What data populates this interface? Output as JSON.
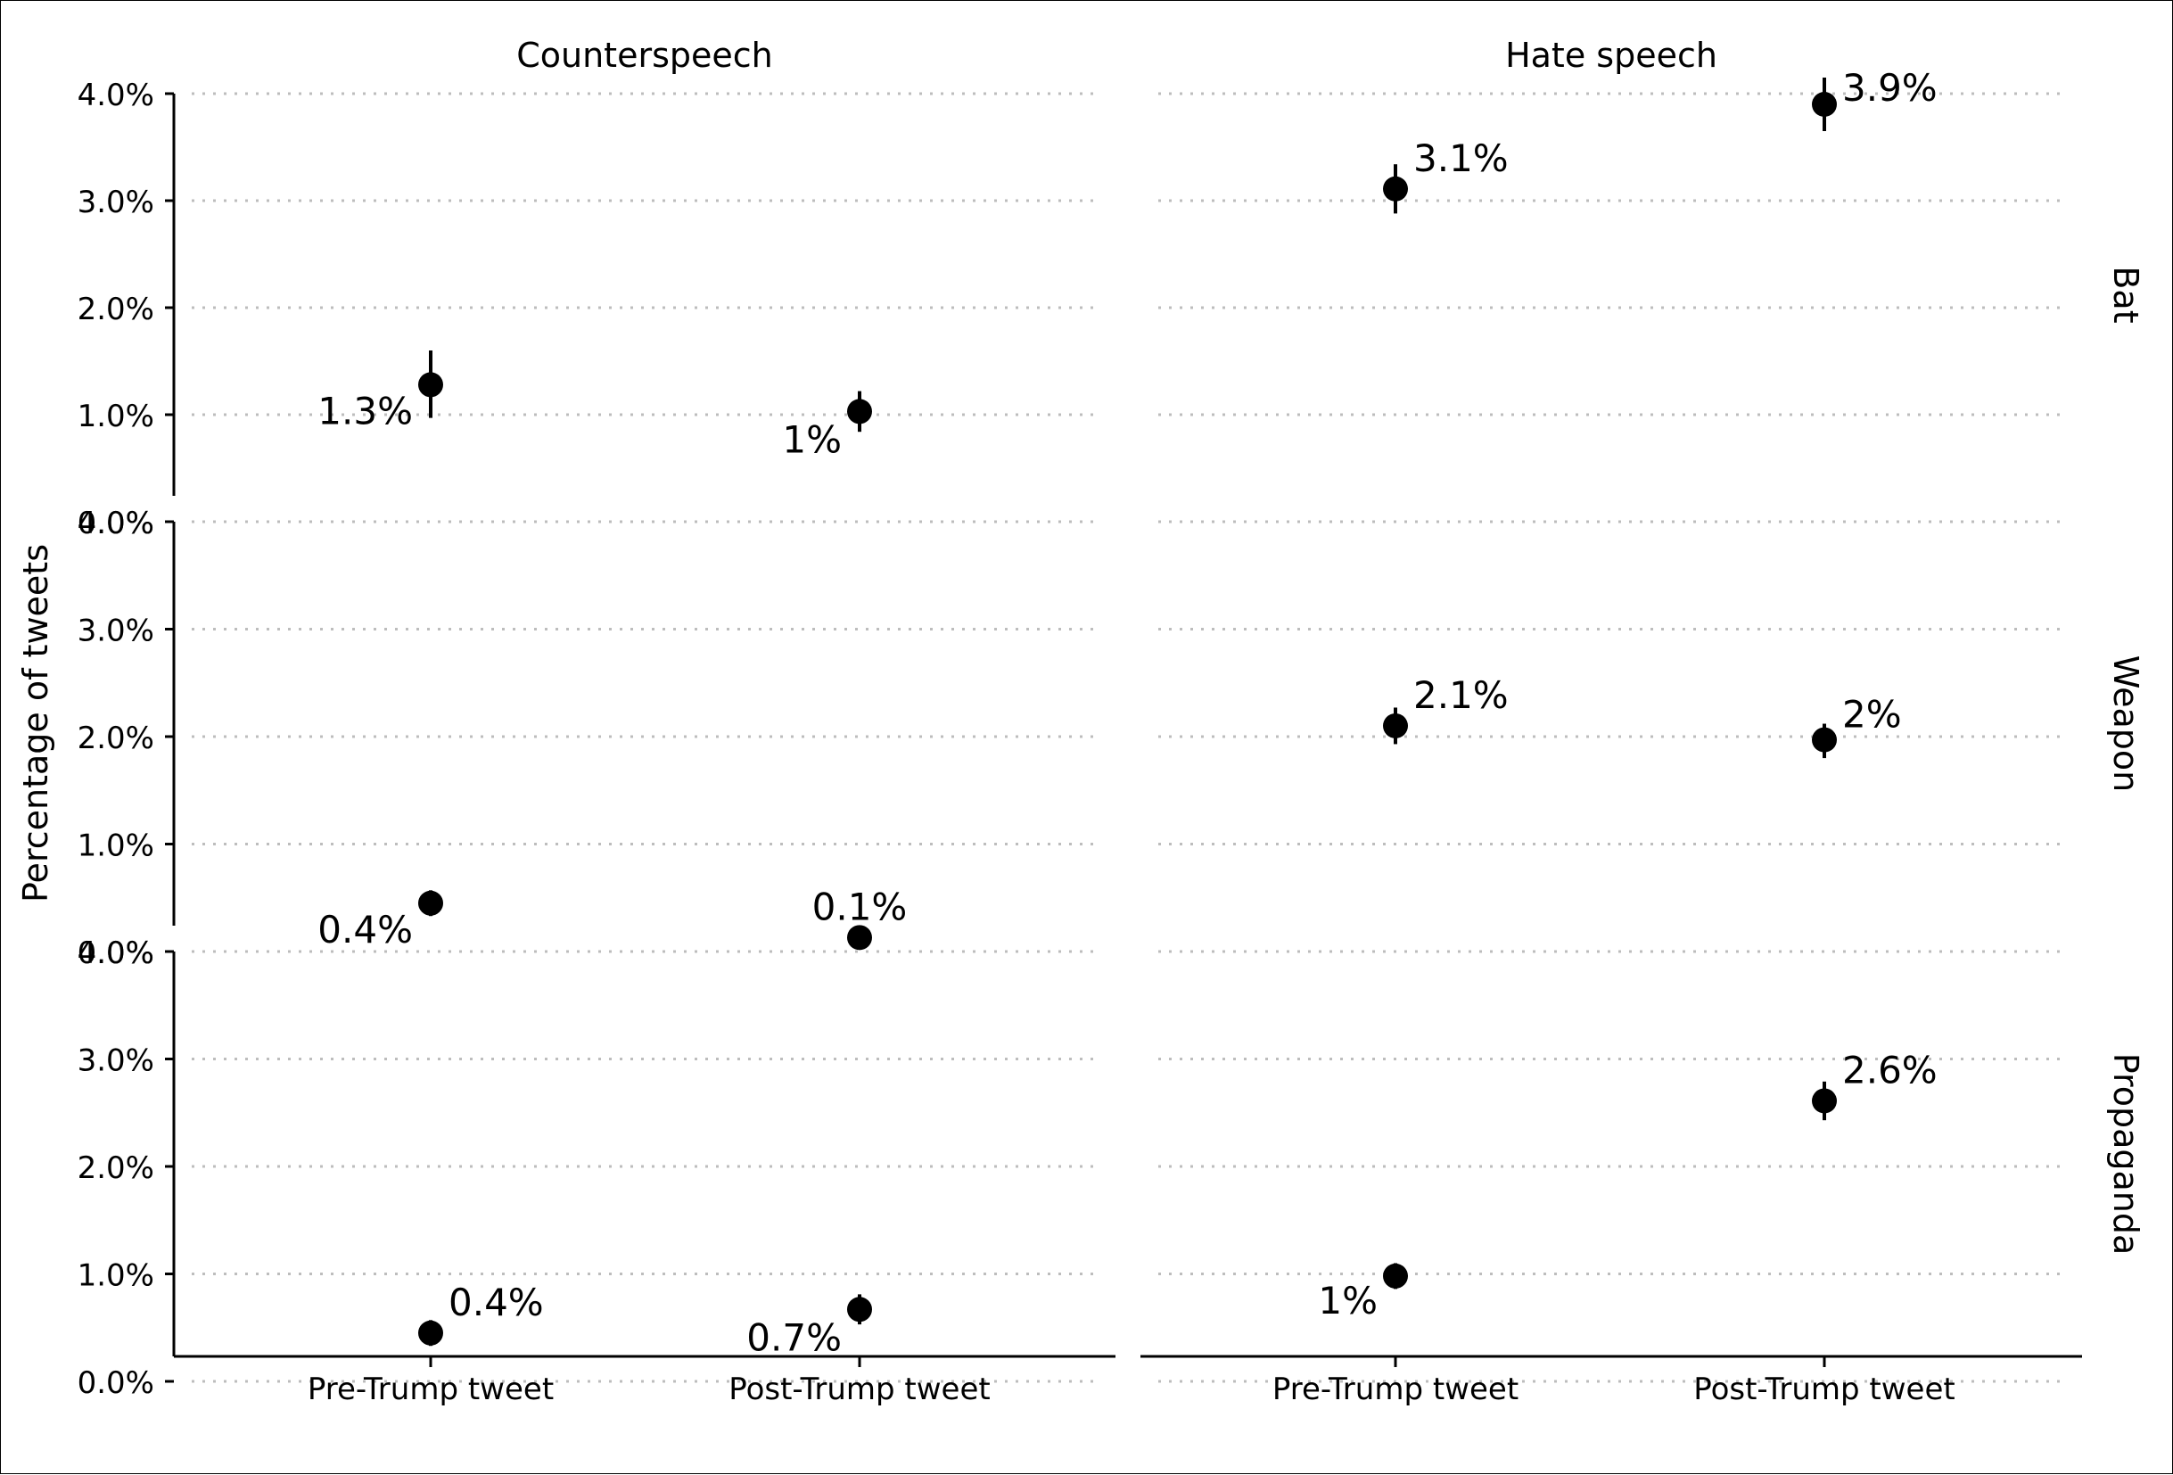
{
  "chart_data": {
    "type": "scatter",
    "ylabel": "Percentage of tweets",
    "ylim": [
      0,
      4
    ],
    "y_ticks": [
      "0.0%",
      "1.0%",
      "2.0%",
      "3.0%",
      "4.0%"
    ],
    "categories": [
      "Pre-Trump tweet",
      "Post-Trump tweet"
    ],
    "columns": [
      "Counterspeech",
      "Hate speech"
    ],
    "rows": [
      "Bat",
      "Weapon",
      "Propaganda"
    ],
    "grid": "horizontal-dotted",
    "panels": [
      {
        "row": "Bat",
        "column": "Counterspeech",
        "points": [
          {
            "x": "Pre-Trump tweet",
            "y": 1.28,
            "low": 0.97,
            "high": 1.6,
            "label": "1.3%"
          },
          {
            "x": "Post-Trump tweet",
            "y": 1.03,
            "low": 0.84,
            "high": 1.22,
            "label": "1%"
          }
        ]
      },
      {
        "row": "Bat",
        "column": "Hate speech",
        "points": [
          {
            "x": "Pre-Trump tweet",
            "y": 3.11,
            "low": 2.88,
            "high": 3.34,
            "label": "3.1%"
          },
          {
            "x": "Post-Trump tweet",
            "y": 3.9,
            "low": 3.65,
            "high": 4.15,
            "label": "3.9%"
          }
        ]
      },
      {
        "row": "Weapon",
        "column": "Counterspeech",
        "points": [
          {
            "x": "Pre-Trump tweet",
            "y": 0.45,
            "low": 0.33,
            "high": 0.57,
            "label": "0.4%"
          },
          {
            "x": "Post-Trump tweet",
            "y": 0.13,
            "low": 0.07,
            "high": 0.19,
            "label": "0.1%"
          }
        ]
      },
      {
        "row": "Weapon",
        "column": "Hate speech",
        "points": [
          {
            "x": "Pre-Trump tweet",
            "y": 2.1,
            "low": 1.93,
            "high": 2.27,
            "label": "2.1%"
          },
          {
            "x": "Post-Trump tweet",
            "y": 1.97,
            "low": 1.8,
            "high": 2.12,
            "label": "2%"
          }
        ]
      },
      {
        "row": "Propaganda",
        "column": "Counterspeech",
        "points": [
          {
            "x": "Pre-Trump tweet",
            "y": 0.45,
            "low": 0.33,
            "high": 0.57,
            "label": "0.4%"
          },
          {
            "x": "Post-Trump tweet",
            "y": 0.67,
            "low": 0.53,
            "high": 0.81,
            "label": "0.7%"
          }
        ]
      },
      {
        "row": "Propaganda",
        "column": "Hate speech",
        "points": [
          {
            "x": "Pre-Trump tweet",
            "y": 0.98,
            "low": 0.86,
            "high": 1.1,
            "label": "1%"
          },
          {
            "x": "Post-Trump tweet",
            "y": 2.61,
            "low": 2.43,
            "high": 2.79,
            "label": "2.6%"
          }
        ]
      }
    ]
  }
}
